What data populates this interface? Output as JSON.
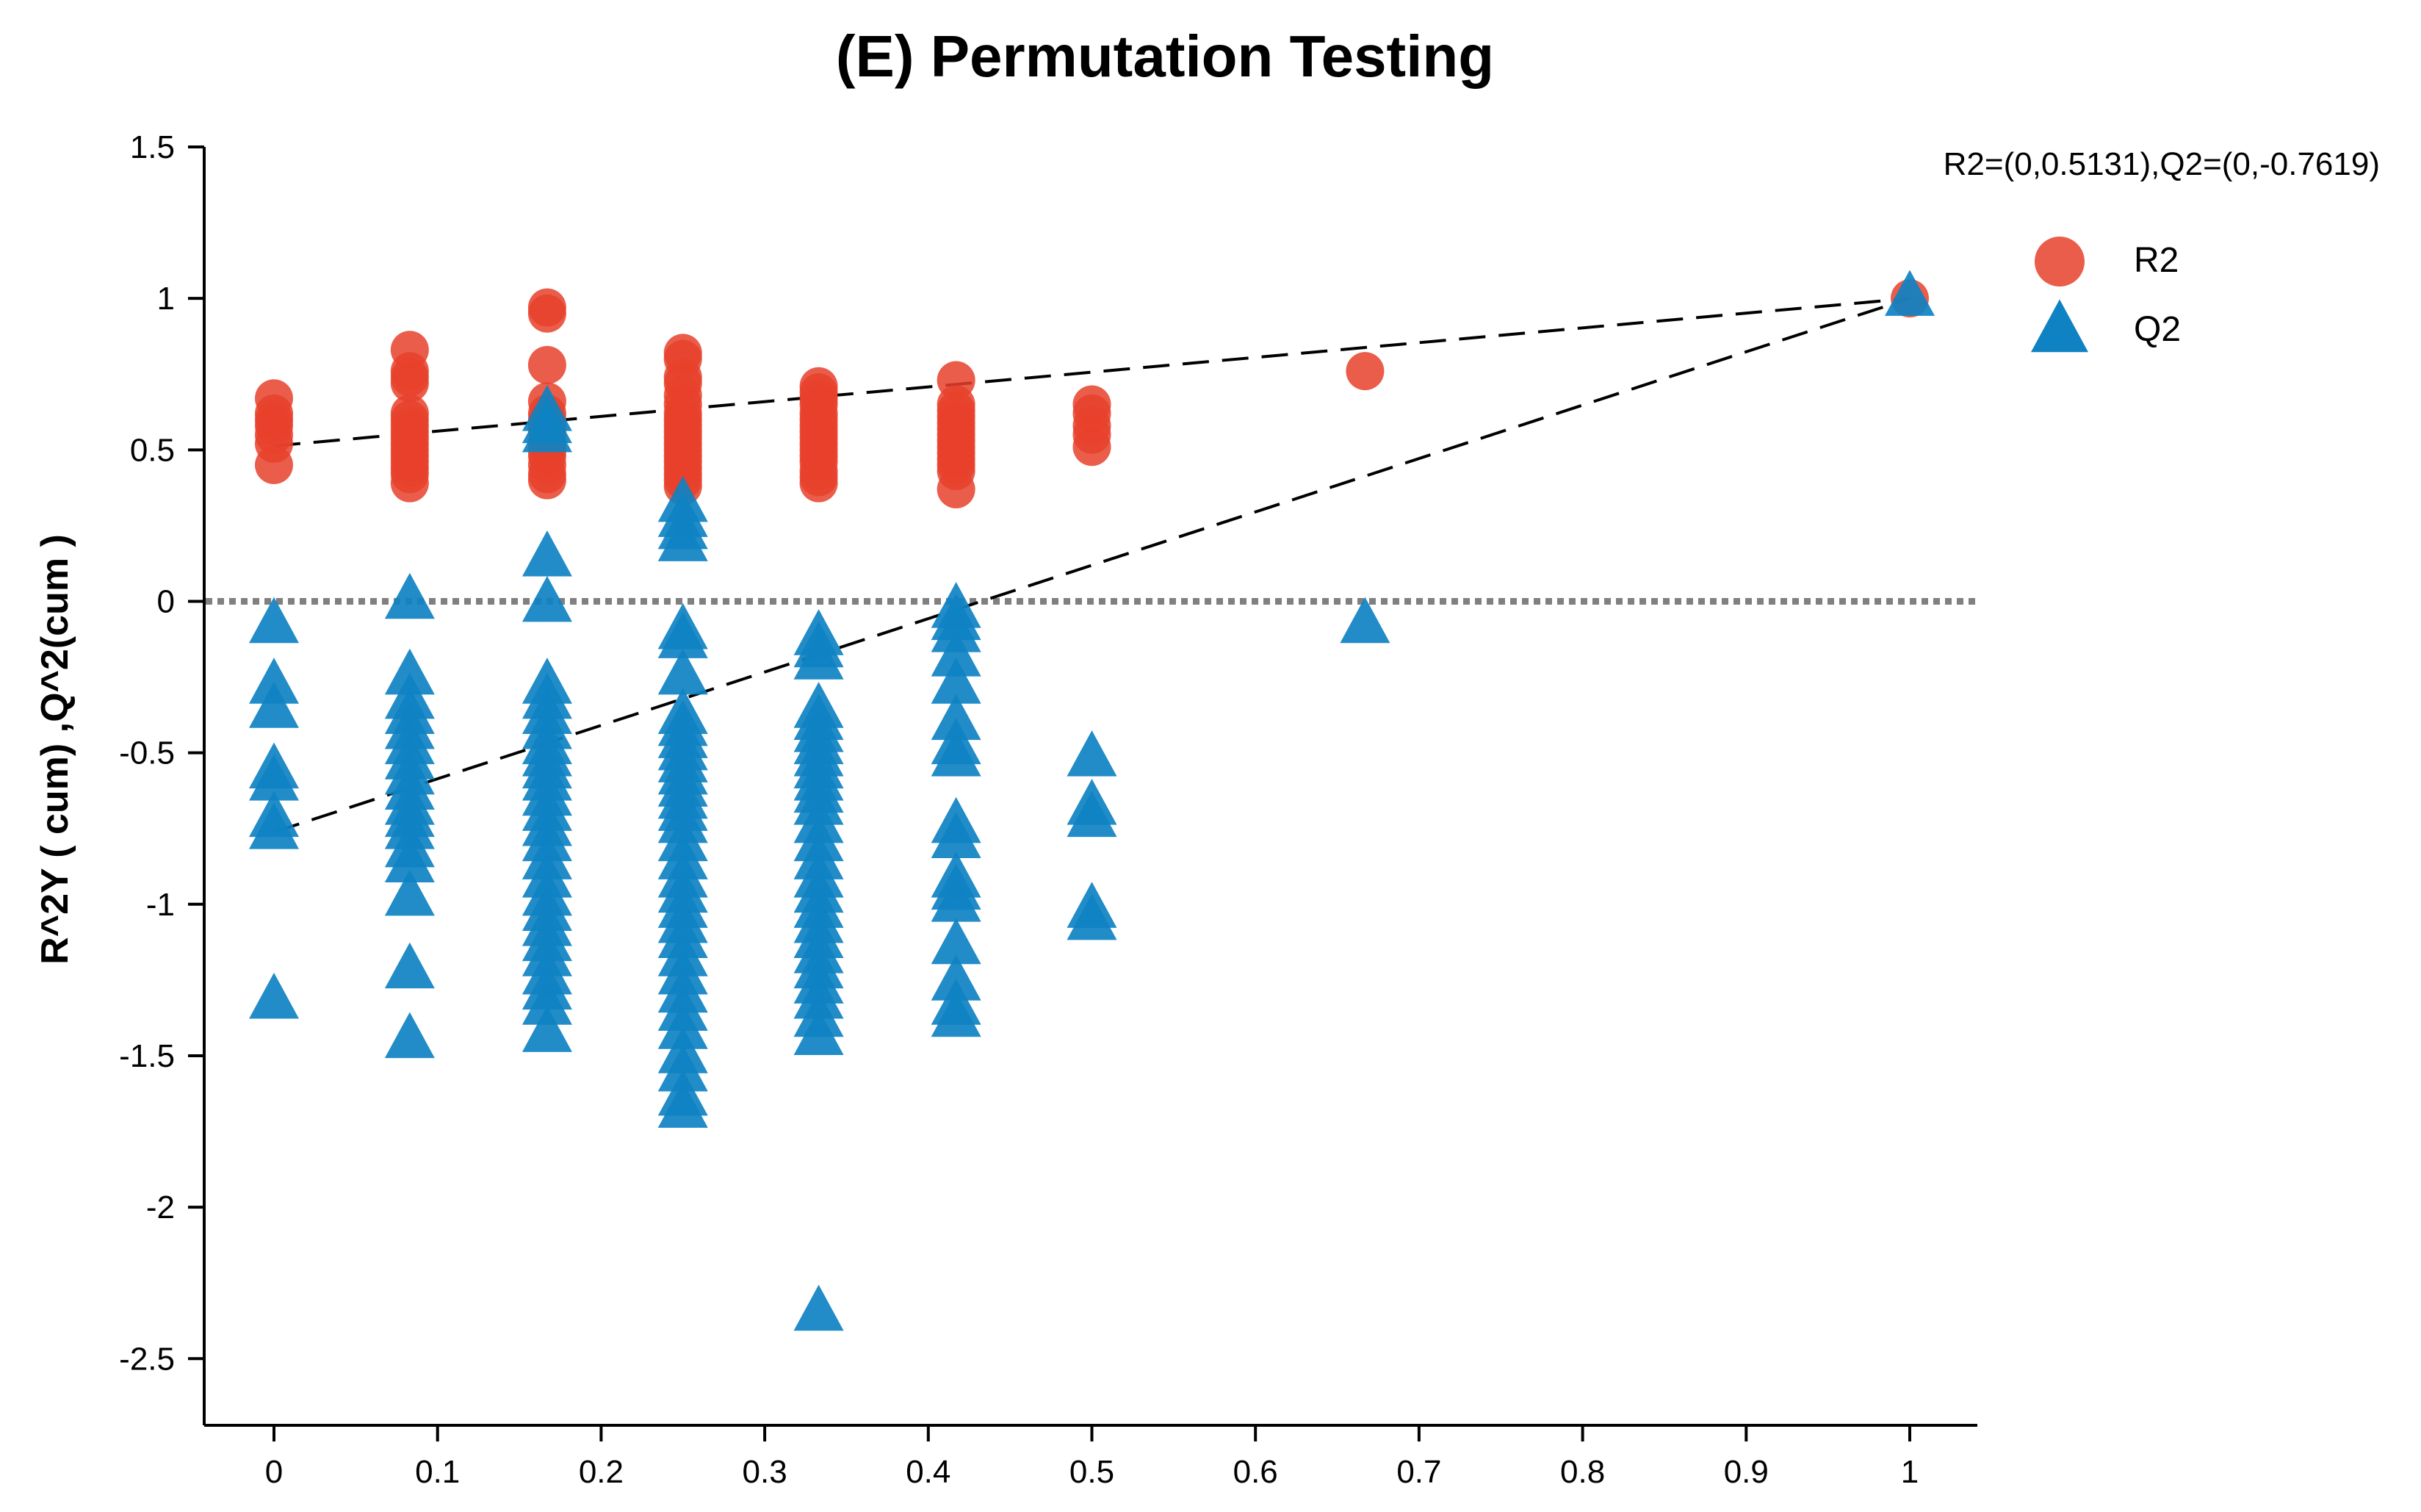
{
  "chart_data": {
    "type": "scatter",
    "title": "(E) Permutation Testing",
    "xlabel": "",
    "ylabel": "R^2Y ( cum) ,Q^2(cum )",
    "xlim": [
      -0.04,
      1.04
    ],
    "ylim": [
      -2.72,
      1.5
    ],
    "x_ticks": [
      0,
      0.1,
      0.2,
      0.3,
      0.4,
      0.5,
      0.6,
      0.7,
      0.8,
      0.9,
      1
    ],
    "x_tick_labels": [
      "0",
      "0.1",
      "0.2",
      "0.3",
      "0.4",
      "0.5",
      "0.6",
      "0.7",
      "0.8",
      "0.9",
      "1"
    ],
    "y_ticks": [
      1.5,
      1,
      0.5,
      0,
      -0.5,
      -1,
      -1.5,
      -2,
      -2.5
    ],
    "y_tick_labels": [
      "1.5",
      "1",
      "0.5",
      "0",
      "-0.5",
      "-1",
      "-1.5",
      "-2",
      "-2.5"
    ],
    "annotation": "R2=(0,0.5131),Q2=(0,-0.7619)",
    "legend": {
      "position": "top-right",
      "entries": [
        "R2",
        "Q2"
      ]
    },
    "colors": {
      "R2": "#e8412c",
      "Q2": "#0e82c2",
      "reference_line": "#808080",
      "regression_line": "#000000"
    },
    "zero_line": 0,
    "regression_lines": [
      {
        "name": "R2",
        "intercept": 0.5131,
        "endpoint": [
          1,
          1
        ]
      },
      {
        "name": "Q2",
        "intercept": -0.7619,
        "endpoint": [
          1,
          1
        ]
      }
    ],
    "series": [
      {
        "name": "R2",
        "marker": "circle",
        "points": [
          [
            0,
            0.67
          ],
          [
            0,
            0.62
          ],
          [
            0,
            0.6
          ],
          [
            0,
            0.58
          ],
          [
            0,
            0.55
          ],
          [
            0,
            0.52
          ],
          [
            0,
            0.45
          ],
          [
            0.083,
            0.83
          ],
          [
            0.083,
            0.76
          ],
          [
            0.083,
            0.74
          ],
          [
            0.083,
            0.72
          ],
          [
            0.083,
            0.62
          ],
          [
            0.083,
            0.6
          ],
          [
            0.083,
            0.58
          ],
          [
            0.083,
            0.56
          ],
          [
            0.083,
            0.54
          ],
          [
            0.083,
            0.52
          ],
          [
            0.083,
            0.5
          ],
          [
            0.083,
            0.48
          ],
          [
            0.083,
            0.46
          ],
          [
            0.083,
            0.44
          ],
          [
            0.083,
            0.42
          ],
          [
            0.083,
            0.39
          ],
          [
            0.167,
            0.97
          ],
          [
            0.167,
            0.95
          ],
          [
            0.167,
            0.78
          ],
          [
            0.167,
            0.66
          ],
          [
            0.167,
            0.62
          ],
          [
            0.167,
            0.6
          ],
          [
            0.167,
            0.58
          ],
          [
            0.167,
            0.56
          ],
          [
            0.167,
            0.52
          ],
          [
            0.167,
            0.5
          ],
          [
            0.167,
            0.48
          ],
          [
            0.167,
            0.45
          ],
          [
            0.167,
            0.42
          ],
          [
            0.167,
            0.4
          ],
          [
            0.25,
            0.82
          ],
          [
            0.25,
            0.8
          ],
          [
            0.25,
            0.74
          ],
          [
            0.25,
            0.72
          ],
          [
            0.25,
            0.68
          ],
          [
            0.25,
            0.65
          ],
          [
            0.25,
            0.62
          ],
          [
            0.25,
            0.6
          ],
          [
            0.25,
            0.58
          ],
          [
            0.25,
            0.56
          ],
          [
            0.25,
            0.54
          ],
          [
            0.25,
            0.52
          ],
          [
            0.25,
            0.5
          ],
          [
            0.25,
            0.48
          ],
          [
            0.25,
            0.46
          ],
          [
            0.25,
            0.44
          ],
          [
            0.25,
            0.42
          ],
          [
            0.25,
            0.4
          ],
          [
            0.25,
            0.38
          ],
          [
            0.333,
            0.71
          ],
          [
            0.333,
            0.69
          ],
          [
            0.333,
            0.67
          ],
          [
            0.333,
            0.65
          ],
          [
            0.333,
            0.62
          ],
          [
            0.333,
            0.6
          ],
          [
            0.333,
            0.58
          ],
          [
            0.333,
            0.56
          ],
          [
            0.333,
            0.54
          ],
          [
            0.333,
            0.52
          ],
          [
            0.333,
            0.5
          ],
          [
            0.333,
            0.48
          ],
          [
            0.333,
            0.46
          ],
          [
            0.333,
            0.43
          ],
          [
            0.333,
            0.41
          ],
          [
            0.333,
            0.39
          ],
          [
            0.417,
            0.73
          ],
          [
            0.417,
            0.65
          ],
          [
            0.417,
            0.63
          ],
          [
            0.417,
            0.61
          ],
          [
            0.417,
            0.59
          ],
          [
            0.417,
            0.57
          ],
          [
            0.417,
            0.55
          ],
          [
            0.417,
            0.53
          ],
          [
            0.417,
            0.51
          ],
          [
            0.417,
            0.49
          ],
          [
            0.417,
            0.47
          ],
          [
            0.417,
            0.45
          ],
          [
            0.417,
            0.43
          ],
          [
            0.417,
            0.37
          ],
          [
            0.5,
            0.65
          ],
          [
            0.5,
            0.62
          ],
          [
            0.5,
            0.58
          ],
          [
            0.5,
            0.55
          ],
          [
            0.5,
            0.51
          ],
          [
            0.667,
            0.76
          ],
          [
            1,
            1
          ]
        ]
      },
      {
        "name": "Q2",
        "marker": "triangle",
        "points": [
          [
            0,
            -0.08
          ],
          [
            0,
            -0.28
          ],
          [
            0,
            -0.36
          ],
          [
            0,
            -0.56
          ],
          [
            0,
            -0.6
          ],
          [
            0,
            -0.72
          ],
          [
            0,
            -0.76
          ],
          [
            0,
            -1.32
          ],
          [
            0.083,
            0.0
          ],
          [
            0.083,
            -0.25
          ],
          [
            0.083,
            -0.33
          ],
          [
            0.083,
            -0.38
          ],
          [
            0.083,
            -0.43
          ],
          [
            0.083,
            -0.48
          ],
          [
            0.083,
            -0.53
          ],
          [
            0.083,
            -0.58
          ],
          [
            0.083,
            -0.63
          ],
          [
            0.083,
            -0.68
          ],
          [
            0.083,
            -0.72
          ],
          [
            0.083,
            -0.76
          ],
          [
            0.083,
            -0.82
          ],
          [
            0.083,
            -0.87
          ],
          [
            0.083,
            -0.98
          ],
          [
            0.083,
            -1.22
          ],
          [
            0.083,
            -1.45
          ],
          [
            0.167,
            0.62
          ],
          [
            0.167,
            0.58
          ],
          [
            0.167,
            0.55
          ],
          [
            0.167,
            0.14
          ],
          [
            0.167,
            -0.01
          ],
          [
            0.167,
            -0.28
          ],
          [
            0.167,
            -0.33
          ],
          [
            0.167,
            -0.38
          ],
          [
            0.167,
            -0.43
          ],
          [
            0.167,
            -0.48
          ],
          [
            0.167,
            -0.52
          ],
          [
            0.167,
            -0.56
          ],
          [
            0.167,
            -0.6
          ],
          [
            0.167,
            -0.65
          ],
          [
            0.167,
            -0.7
          ],
          [
            0.167,
            -0.75
          ],
          [
            0.167,
            -0.8
          ],
          [
            0.167,
            -0.86
          ],
          [
            0.167,
            -0.92
          ],
          [
            0.167,
            -0.98
          ],
          [
            0.167,
            -1.03
          ],
          [
            0.167,
            -1.08
          ],
          [
            0.167,
            -1.13
          ],
          [
            0.167,
            -1.18
          ],
          [
            0.167,
            -1.24
          ],
          [
            0.167,
            -1.29
          ],
          [
            0.167,
            -1.34
          ],
          [
            0.167,
            -1.43
          ],
          [
            0.25,
            0.32
          ],
          [
            0.25,
            0.27
          ],
          [
            0.25,
            0.23
          ],
          [
            0.25,
            0.19
          ],
          [
            0.25,
            -0.1
          ],
          [
            0.25,
            -0.13
          ],
          [
            0.25,
            -0.25
          ],
          [
            0.25,
            -0.38
          ],
          [
            0.25,
            -0.42
          ],
          [
            0.25,
            -0.46
          ],
          [
            0.25,
            -0.5
          ],
          [
            0.25,
            -0.54
          ],
          [
            0.25,
            -0.58
          ],
          [
            0.25,
            -0.62
          ],
          [
            0.25,
            -0.66
          ],
          [
            0.25,
            -0.7
          ],
          [
            0.25,
            -0.74
          ],
          [
            0.25,
            -0.8
          ],
          [
            0.25,
            -0.86
          ],
          [
            0.25,
            -0.92
          ],
          [
            0.25,
            -0.97
          ],
          [
            0.25,
            -1.02
          ],
          [
            0.25,
            -1.07
          ],
          [
            0.25,
            -1.12
          ],
          [
            0.25,
            -1.18
          ],
          [
            0.25,
            -1.24
          ],
          [
            0.25,
            -1.3
          ],
          [
            0.25,
            -1.36
          ],
          [
            0.25,
            -1.42
          ],
          [
            0.25,
            -1.5
          ],
          [
            0.25,
            -1.56
          ],
          [
            0.25,
            -1.64
          ],
          [
            0.25,
            -1.68
          ],
          [
            0.333,
            -0.12
          ],
          [
            0.333,
            -0.16
          ],
          [
            0.333,
            -0.2
          ],
          [
            0.333,
            -0.36
          ],
          [
            0.333,
            -0.4
          ],
          [
            0.333,
            -0.44
          ],
          [
            0.333,
            -0.48
          ],
          [
            0.333,
            -0.52
          ],
          [
            0.333,
            -0.56
          ],
          [
            0.333,
            -0.6
          ],
          [
            0.333,
            -0.64
          ],
          [
            0.333,
            -0.68
          ],
          [
            0.333,
            -0.74
          ],
          [
            0.333,
            -0.8
          ],
          [
            0.333,
            -0.86
          ],
          [
            0.333,
            -0.92
          ],
          [
            0.333,
            -0.97
          ],
          [
            0.333,
            -1.02
          ],
          [
            0.333,
            -1.07
          ],
          [
            0.333,
            -1.12
          ],
          [
            0.333,
            -1.17
          ],
          [
            0.333,
            -1.22
          ],
          [
            0.333,
            -1.27
          ],
          [
            0.333,
            -1.32
          ],
          [
            0.333,
            -1.38
          ],
          [
            0.333,
            -1.44
          ],
          [
            0.333,
            -2.35
          ],
          [
            0.417,
            -0.03
          ],
          [
            0.417,
            -0.07
          ],
          [
            0.417,
            -0.11
          ],
          [
            0.417,
            -0.19
          ],
          [
            0.417,
            -0.28
          ],
          [
            0.417,
            -0.4
          ],
          [
            0.417,
            -0.48
          ],
          [
            0.417,
            -0.52
          ],
          [
            0.417,
            -0.74
          ],
          [
            0.417,
            -0.79
          ],
          [
            0.417,
            -0.92
          ],
          [
            0.417,
            -0.96
          ],
          [
            0.417,
            -1.0
          ],
          [
            0.417,
            -1.14
          ],
          [
            0.417,
            -1.26
          ],
          [
            0.417,
            -1.34
          ],
          [
            0.417,
            -1.38
          ],
          [
            0.5,
            -0.52
          ],
          [
            0.5,
            -0.68
          ],
          [
            0.5,
            -0.72
          ],
          [
            0.5,
            -1.02
          ],
          [
            0.5,
            -1.06
          ],
          [
            0.667,
            -0.08
          ],
          [
            1,
            1
          ]
        ]
      }
    ]
  }
}
